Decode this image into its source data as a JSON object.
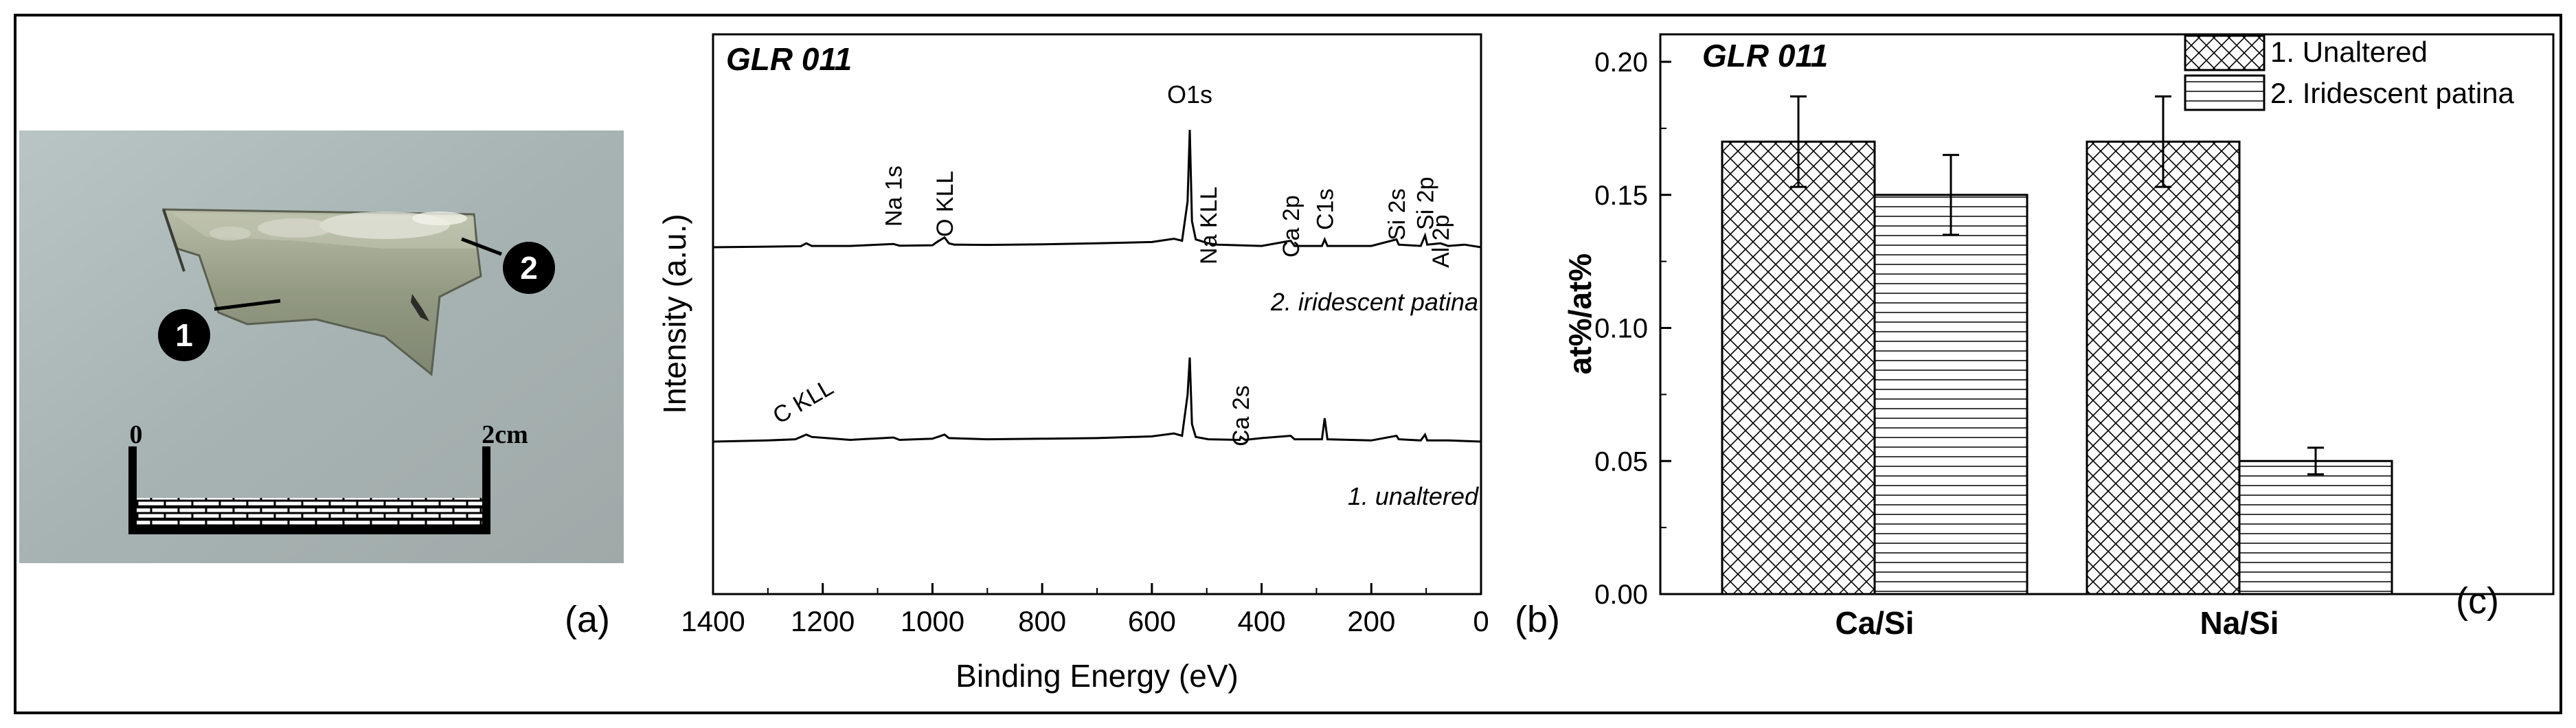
{
  "panel_a": {
    "label": "(a)",
    "markers": [
      {
        "number": "1",
        "description": "unaltered area"
      },
      {
        "number": "2",
        "description": "iridescent patina area"
      }
    ],
    "scale": {
      "start": "0",
      "end": "2cm"
    }
  },
  "panel_b": {
    "label": "(b)"
  },
  "panel_c": {
    "label": "(c)"
  },
  "colors": {
    "frame": "#000000",
    "photo_bg": "#a7b3b3",
    "glass": "#8f957f",
    "hatch": "#000000",
    "line": "#000000"
  },
  "chart_data": [
    {
      "type": "line",
      "title": "GLR 011",
      "xlabel": "Binding Energy (eV)",
      "ylabel": "Intensity (a.u.)",
      "xlim": [
        1400,
        0
      ],
      "x_reversed": true,
      "xticks": [
        1400,
        1200,
        1000,
        800,
        600,
        400,
        200,
        0
      ],
      "yticks_shown": false,
      "series": [
        {
          "name": "2. iridescent patina",
          "offset": 0.62,
          "points": [
            [
              1400,
              0.0
            ],
            [
              1300,
              0.005
            ],
            [
              1240,
              0.008
            ],
            [
              1230,
              0.03
            ],
            [
              1220,
              0.01
            ],
            [
              1150,
              0.01
            ],
            [
              1071,
              0.025
            ],
            [
              1060,
              0.012
            ],
            [
              1000,
              0.015
            ],
            [
              990,
              0.045
            ],
            [
              978,
              0.075
            ],
            [
              970,
              0.03
            ],
            [
              960,
              0.02
            ],
            [
              900,
              0.018
            ],
            [
              800,
              0.022
            ],
            [
              700,
              0.03
            ],
            [
              600,
              0.04
            ],
            [
              560,
              0.065
            ],
            [
              545,
              0.05
            ],
            [
              535,
              0.35
            ],
            [
              531,
              0.9
            ],
            [
              527,
              0.2
            ],
            [
              520,
              0.06
            ],
            [
              497,
              0.03
            ],
            [
              480,
              0.02
            ],
            [
              400,
              0.01
            ],
            [
              347,
              0.05
            ],
            [
              340,
              0.01
            ],
            [
              290,
              0.01
            ],
            [
              285,
              0.06
            ],
            [
              280,
              0.01
            ],
            [
              200,
              0.01
            ],
            [
              154,
              0.06
            ],
            [
              150,
              0.02
            ],
            [
              110,
              0.01
            ],
            [
              102,
              0.09
            ],
            [
              98,
              0.02
            ],
            [
              74,
              0.03
            ],
            [
              60,
              0.01
            ],
            [
              30,
              0.02
            ],
            [
              0,
              0.0
            ]
          ]
        },
        {
          "name": "1. unaltered",
          "offset": 0.0,
          "points": [
            [
              1400,
              0.0
            ],
            [
              1300,
              0.01
            ],
            [
              1250,
              0.02
            ],
            [
              1230,
              0.06
            ],
            [
              1220,
              0.04
            ],
            [
              1150,
              0.015
            ],
            [
              1071,
              0.035
            ],
            [
              1060,
              0.015
            ],
            [
              1000,
              0.025
            ],
            [
              978,
              0.06
            ],
            [
              970,
              0.03
            ],
            [
              900,
              0.02
            ],
            [
              800,
              0.025
            ],
            [
              700,
              0.03
            ],
            [
              600,
              0.045
            ],
            [
              560,
              0.07
            ],
            [
              545,
              0.05
            ],
            [
              535,
              0.4
            ],
            [
              531,
              0.72
            ],
            [
              527,
              0.15
            ],
            [
              520,
              0.04
            ],
            [
              497,
              0.02
            ],
            [
              440,
              0.015
            ],
            [
              438,
              0.04
            ],
            [
              430,
              0.015
            ],
            [
              400,
              0.03
            ],
            [
              347,
              0.05
            ],
            [
              340,
              0.02
            ],
            [
              290,
              0.02
            ],
            [
              285,
              0.2
            ],
            [
              280,
              0.02
            ],
            [
              200,
              0.01
            ],
            [
              154,
              0.05
            ],
            [
              150,
              0.02
            ],
            [
              110,
              0.01
            ],
            [
              102,
              0.06
            ],
            [
              98,
              0.01
            ],
            [
              60,
              0.01
            ],
            [
              0,
              0.0
            ]
          ]
        }
      ],
      "peak_labels": [
        {
          "text": "Na 1s",
          "energy": 1071
        },
        {
          "text": "O KLL",
          "energy": 978
        },
        {
          "text": "O1s",
          "energy": 531
        },
        {
          "text": "Na KLL",
          "energy": 497
        },
        {
          "text": "Ca 2p",
          "energy": 347
        },
        {
          "text": "C1s",
          "energy": 285
        },
        {
          "text": "Si 2s",
          "energy": 154
        },
        {
          "text": "Si 2p",
          "energy": 102
        },
        {
          "text": "Al 2p",
          "energy": 74
        },
        {
          "text": "C KLL",
          "energy": 1230
        },
        {
          "text": "Ca 2s",
          "energy": 438
        }
      ]
    },
    {
      "type": "bar",
      "title": "GLR 011",
      "xlabel": "",
      "ylabel": "at%/at%",
      "categories": [
        "Ca/Si",
        "Na/Si"
      ],
      "ylim": [
        0.0,
        0.2
      ],
      "yticks": [
        "0.00",
        "0.05",
        "0.10",
        "0.15",
        "0.20"
      ],
      "legend_position": "top-right",
      "series": [
        {
          "name": "1. Unaltered",
          "pattern": "crosshatch",
          "values": [
            0.17,
            0.17
          ],
          "errors": [
            0.017,
            0.017
          ]
        },
        {
          "name": "2. Iridescent patina",
          "pattern": "horizontal-lines",
          "values": [
            0.15,
            0.05
          ],
          "errors": [
            0.015,
            0.005
          ]
        }
      ]
    }
  ]
}
